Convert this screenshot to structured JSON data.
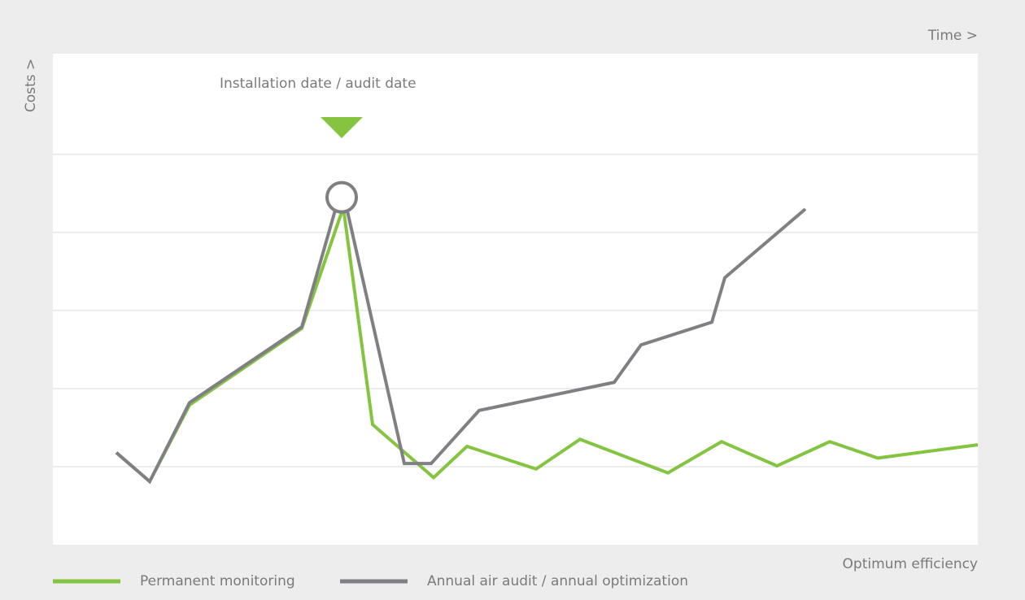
{
  "chart_data": {
    "type": "line",
    "x_axis_label": "Time >",
    "y_axis_label": "Costs >",
    "bottom_label": "Optimum efficiency",
    "annotation": {
      "text": "Installation date / audit date",
      "x": 355,
      "y": 4.45
    },
    "xlim": [
      0,
      1137
    ],
    "ylim": [
      0,
      6.29
    ],
    "yticks": [
      1,
      2,
      3,
      4,
      5
    ],
    "grid": true,
    "legend": "bottom-left",
    "series": [
      {
        "name": "Permanent monitoring",
        "color": "#84c441",
        "x": [
          78,
          119,
          168,
          306,
          357,
          393,
          468,
          509,
          594,
          648,
          756,
          822,
          890,
          955,
          1014,
          1137
        ],
        "values": [
          1.18,
          0.81,
          1.79,
          2.77,
          4.32,
          1.54,
          0.86,
          1.26,
          0.97,
          1.35,
          0.92,
          1.32,
          1.01,
          1.32,
          1.11,
          1.28
        ]
      },
      {
        "name": "Annual air audit / annual optimization",
        "color": "#808084",
        "x": [
          78,
          119,
          168,
          306,
          348,
          361,
          432,
          465,
          524,
          690,
          723,
          810,
          826,
          925
        ],
        "values": [
          1.18,
          0.81,
          1.82,
          2.79,
          4.32,
          4.32,
          1.04,
          1.04,
          1.72,
          2.08,
          2.56,
          2.85,
          3.42,
          4.3
        ]
      }
    ]
  }
}
